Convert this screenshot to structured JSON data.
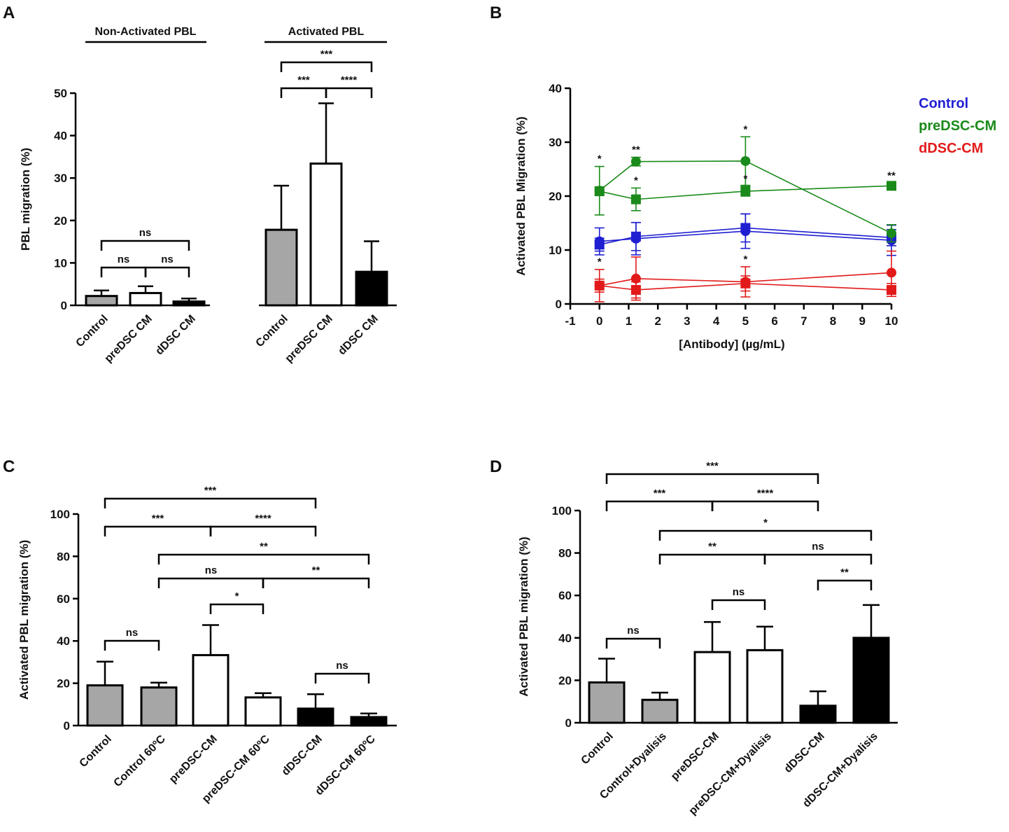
{
  "panel_labels": [
    "A",
    "B",
    "C",
    "D"
  ],
  "chart_data": [
    {
      "panel": "A",
      "type": "bar",
      "title": "",
      "ylabel": "PBL migration (%)",
      "xlabel": "",
      "ylim": [
        0,
        50
      ],
      "yticks": [
        0,
        10,
        20,
        30,
        40,
        50
      ],
      "groups": [
        "Non-Activated PBL",
        "Activated PBL"
      ],
      "categories": [
        "Control",
        "preDSC CM",
        "dDSC CM",
        "Control",
        "preDSC CM",
        "dDSC CM"
      ],
      "values": [
        2.2,
        2.9,
        0.9,
        17.8,
        33.4,
        7.9
      ],
      "errors": [
        1.3,
        1.6,
        0.7,
        10.4,
        14.2,
        7.2
      ],
      "fills": [
        "#a6a6a6",
        "#ffffff",
        "#000000",
        "#a6a6a6",
        "#ffffff",
        "#000000"
      ],
      "significance": [
        {
          "from": 0,
          "to": 2,
          "label": "ns"
        },
        {
          "from": 0,
          "to": 1,
          "label": "ns"
        },
        {
          "from": 1,
          "to": 2,
          "label": "ns"
        },
        {
          "from": 3,
          "to": 5,
          "label": "***"
        },
        {
          "from": 3,
          "to": 4,
          "label": "***"
        },
        {
          "from": 4,
          "to": 5,
          "label": "****"
        }
      ]
    },
    {
      "panel": "B",
      "type": "line",
      "title": "",
      "xlabel": "[Antibody] (µg/mL)",
      "ylabel": "Activated PBL Migration (%)",
      "xlim": [
        -1,
        10
      ],
      "ylim": [
        0,
        40
      ],
      "xticks": [
        -1,
        0,
        1,
        2,
        3,
        4,
        5,
        6,
        7,
        8,
        9,
        10
      ],
      "yticks": [
        0,
        10,
        20,
        30,
        40
      ],
      "legend": [
        "Control",
        "preDSC-CM",
        "dDSC-CM"
      ],
      "series": [
        {
          "name": "Control",
          "marker": "circle",
          "color": "#1f1fd1",
          "x": [
            0,
            1.25,
            5,
            10
          ],
          "y": [
            11.6,
            12.1,
            13.5,
            11.8
          ],
          "err": [
            2.5,
            3.0,
            3.2,
            2.8
          ],
          "stars": [
            "",
            "",
            "",
            ""
          ]
        },
        {
          "name": "Control",
          "marker": "square",
          "color": "#1f1fd1",
          "x": [
            0,
            1.25,
            5,
            10
          ],
          "y": [
            11.0,
            12.5,
            14.1,
            12.3
          ],
          "err": [
            1.2,
            2.6,
            2.6,
            1.5
          ],
          "stars": [
            "",
            "",
            "",
            ""
          ]
        },
        {
          "name": "preDSC-CM",
          "marker": "circle",
          "color": "#1a8a1a",
          "x": [
            0,
            1.25,
            5,
            10
          ],
          "y": [
            21.0,
            26.4,
            26.5,
            13.1
          ],
          "err": [
            4.5,
            0.8,
            4.5,
            1.6
          ],
          "stars": [
            "*",
            "**",
            "*",
            ""
          ]
        },
        {
          "name": "preDSC-CM",
          "marker": "square",
          "color": "#1a8a1a",
          "x": [
            0,
            1.25,
            5,
            10
          ],
          "y": [
            20.9,
            19.4,
            20.9,
            21.9
          ],
          "err": [
            0.8,
            2.1,
            0.9,
            0.5
          ],
          "stars": [
            "",
            "*",
            "*",
            "**"
          ]
        },
        {
          "name": "dDSC-CM",
          "marker": "circle",
          "color": "#e21a1a",
          "x": [
            0,
            1.25,
            5,
            10
          ],
          "y": [
            3.4,
            4.7,
            4.1,
            5.8
          ],
          "err": [
            3.0,
            4.0,
            2.8,
            4.0
          ],
          "stars": [
            "*",
            "",
            "*",
            ""
          ]
        },
        {
          "name": "dDSC-CM",
          "marker": "square",
          "color": "#e21a1a",
          "x": [
            0,
            1.25,
            5,
            10
          ],
          "y": [
            3.4,
            2.6,
            3.8,
            2.6
          ],
          "err": [
            1.2,
            1.5,
            1.4,
            1.2
          ],
          "stars": [
            "",
            "",
            "",
            ""
          ]
        }
      ]
    },
    {
      "panel": "C",
      "type": "bar",
      "title": "",
      "ylabel": "Activated PBL migration (%)",
      "xlabel": "",
      "ylim": [
        0,
        100
      ],
      "yticks": [
        0,
        20,
        40,
        60,
        80,
        100
      ],
      "categories": [
        "Control",
        "Control 60ºC",
        "preDSC-CM",
        "preDSC-CM 60ºC",
        "dDSC-CM",
        "dDSC-CM 60ºC"
      ],
      "values": [
        19.0,
        18.0,
        33.3,
        13.3,
        8.0,
        4.0
      ],
      "errors": [
        11.2,
        2.3,
        14.2,
        2.0,
        6.8,
        1.7
      ],
      "fills": [
        "#a6a6a6",
        "#a6a6a6",
        "#ffffff",
        "#ffffff",
        "#000000",
        "#000000"
      ],
      "significance": [
        {
          "from": 0,
          "to": 4,
          "label": "***"
        },
        {
          "from": 0,
          "to": 2,
          "label": "***"
        },
        {
          "from": 2,
          "to": 4,
          "label": "****"
        },
        {
          "from": 1,
          "to": 5,
          "label": "**"
        },
        {
          "from": 1,
          "to": 3,
          "label": "ns"
        },
        {
          "from": 3,
          "to": 5,
          "label": "**"
        },
        {
          "from": 2,
          "to": 3,
          "label": "*"
        },
        {
          "from": 0,
          "to": 1,
          "label": "ns"
        },
        {
          "from": 4,
          "to": 5,
          "label": "ns"
        }
      ]
    },
    {
      "panel": "D",
      "type": "bar",
      "title": "",
      "ylabel": "Activated PBL migration (%)",
      "xlabel": "",
      "ylim": [
        0,
        100
      ],
      "yticks": [
        0,
        20,
        40,
        60,
        80,
        100
      ],
      "categories": [
        "Control",
        "Control+Dyalisis",
        "preDSC-CM",
        "preDSC-CM+Dyalisis",
        "dDSC-CM",
        "dDSC-CM+Dyalisis"
      ],
      "values": [
        19.0,
        10.8,
        33.3,
        34.2,
        8.0,
        40.0
      ],
      "errors": [
        11.2,
        3.4,
        14.2,
        11.1,
        6.8,
        15.5
      ],
      "fills": [
        "#a6a6a6",
        "#a6a6a6",
        "#ffffff",
        "#ffffff",
        "#000000",
        "#000000"
      ],
      "significance": [
        {
          "from": 0,
          "to": 4,
          "label": "***"
        },
        {
          "from": 0,
          "to": 2,
          "label": "***"
        },
        {
          "from": 2,
          "to": 4,
          "label": "****"
        },
        {
          "from": 1,
          "to": 5,
          "label": "*"
        },
        {
          "from": 1,
          "to": 3,
          "label": "**"
        },
        {
          "from": 3,
          "to": 5,
          "label": "ns"
        },
        {
          "from": 4,
          "to": 5,
          "label": "**"
        },
        {
          "from": 2,
          "to": 3,
          "label": "ns"
        },
        {
          "from": 0,
          "to": 1,
          "label": "ns"
        }
      ]
    }
  ]
}
